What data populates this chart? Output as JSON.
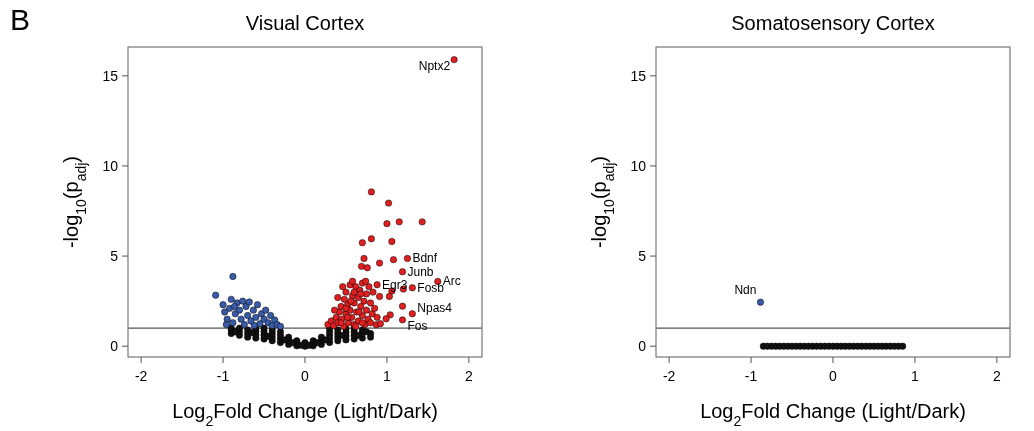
{
  "chart_data": [
    {
      "type": "scatter",
      "title": "Visual Cortex",
      "xlabel": "Log$_{2}$Fold Change (Light/Dark)",
      "ylabel": "-log$_{10}$(p$_{adj}$)",
      "xlim": [
        -2.16,
        2.16
      ],
      "ylim": [
        -0.6,
        16.6
      ],
      "xticks": [
        -2,
        -1,
        0,
        1,
        2
      ],
      "yticks": [
        0,
        5,
        10,
        15
      ],
      "grid": false,
      "marker": "circle",
      "ref_lines": [
        {
          "axis": "y",
          "value": 1,
          "color": "#555555"
        }
      ],
      "annotations": [
        "B",
        {
          "text": "Nptx2",
          "x": 1.82,
          "y": 15.9
        },
        {
          "text": "Bdnf",
          "x": 1.25,
          "y": 4.87
        },
        {
          "text": "Egr3",
          "x": 0.88,
          "y": 3.41
        },
        {
          "text": "Junb",
          "x": 1.19,
          "y": 4.13
        },
        {
          "text": "Arc",
          "x": 1.62,
          "y": 3.59
        },
        {
          "text": "Fosb",
          "x": 1.31,
          "y": 3.24
        },
        {
          "text": "Npas4",
          "x": 1.31,
          "y": 1.8
        },
        {
          "text": "Fos",
          "x": 1.19,
          "y": 1.46
        }
      ],
      "series": [
        {
          "color": "#111111",
          "x": [
            -0.9,
            -0.9,
            -0.9,
            -0.8,
            -0.8,
            -0.8,
            -0.7,
            -0.7,
            -0.7,
            -0.6,
            -0.6,
            -0.6,
            -0.6,
            -0.5,
            -0.5,
            -0.5,
            -0.5,
            -0.4,
            -0.4,
            -0.4,
            -0.4,
            -0.3,
            -0.3,
            -0.3,
            -0.3,
            -0.2,
            -0.2,
            -0.2,
            -0.1,
            -0.1,
            -0.1,
            0,
            0,
            0.1,
            0.1,
            0.1,
            0.2,
            0.2,
            0.2,
            0.3,
            0.3,
            0.3,
            0.3,
            0.3,
            0.4,
            0.4,
            0.4,
            0.4,
            0.5,
            0.5,
            0.5,
            0.5,
            0.6,
            0.6,
            0.6,
            0.6,
            0.7,
            0.7,
            0.7,
            0.8,
            0.8,
            -0.85,
            -0.65,
            -0.45,
            -0.25,
            -0.15,
            -0.05,
            0.05,
            0.15,
            0.25,
            0.45,
            0.65,
            0.75
          ],
          "values": [
            0.7,
            0.9,
            1.0,
            0.6,
            0.8,
            1.0,
            0.5,
            0.7,
            0.9,
            0.45,
            0.65,
            0.85,
            1.0,
            0.4,
            0.6,
            0.8,
            1.0,
            0.3,
            0.5,
            0.7,
            0.9,
            0.2,
            0.4,
            0.6,
            0.8,
            0.1,
            0.3,
            0.5,
            0.02,
            0.15,
            0.3,
            0,
            0.2,
            0.02,
            0.15,
            0.3,
            0.1,
            0.3,
            0.5,
            0.2,
            0.4,
            0.6,
            0.8,
            1.0,
            0.3,
            0.5,
            0.7,
            0.9,
            0.35,
            0.55,
            0.75,
            0.95,
            0.4,
            0.6,
            0.8,
            1.0,
            0.45,
            0.7,
            0.9,
            0.5,
            0.7,
            0.8,
            0.75,
            0.55,
            0.35,
            0.2,
            0.05,
            0.05,
            0.2,
            0.35,
            0.6,
            0.6,
            0.8
          ]
        },
        {
          "color": "#3a5ca8",
          "x": [
            -1.09,
            -0.88,
            -1.0,
            -0.98,
            -0.95,
            -0.92,
            -0.9,
            -0.88,
            -0.85,
            -0.83,
            -0.8,
            -0.78,
            -0.76,
            -0.74,
            -0.72,
            -0.7,
            -0.68,
            -0.66,
            -0.63,
            -0.6,
            -0.58,
            -0.55,
            -0.53,
            -0.5,
            -0.48,
            -0.45,
            -0.42,
            -0.4,
            -0.37,
            -0.34,
            -0.3,
            -0.96,
            -0.86,
            -0.62
          ],
          "values": [
            2.83,
            3.87,
            2.3,
            1.9,
            1.5,
            2.1,
            2.6,
            1.3,
            1.8,
            2.4,
            2.0,
            1.5,
            2.5,
            1.2,
            2.2,
            1.7,
            2.45,
            1.4,
            2.0,
            1.6,
            2.3,
            1.25,
            1.8,
            1.5,
            2.0,
            1.3,
            1.7,
            1.15,
            1.45,
            1.2,
            1.1,
            1.2,
            2.2,
            1.15
          ]
        },
        {
          "color": "#e02020",
          "x": [
            1.82,
            0.81,
            1.02,
            1.0,
            1.15,
            1.43,
            0.7,
            0.81,
            1.06,
            1.25,
            0.72,
            0.91,
            1.08,
            0.69,
            0.76,
            1.19,
            1.62,
            0.88,
            1.2,
            1.31,
            1.06,
            1.03,
            0.91,
            1.19,
            1.31,
            1.04,
            0.99,
            1.19,
            0.87,
            0.28,
            0.32,
            0.35,
            0.38,
            0.4,
            0.42,
            0.44,
            0.45,
            0.47,
            0.48,
            0.5,
            0.5,
            0.52,
            0.53,
            0.55,
            0.55,
            0.57,
            0.58,
            0.6,
            0.6,
            0.62,
            0.63,
            0.65,
            0.65,
            0.67,
            0.68,
            0.7,
            0.7,
            0.72,
            0.73,
            0.75,
            0.75,
            0.77,
            0.78,
            0.8,
            0.82,
            0.83,
            0.85,
            0.4,
            0.46,
            0.58,
            0.62,
            0.36,
            0.52,
            0.68,
            0.74,
            0.6,
            0.44,
            0.56,
            0.8,
            0.92,
            0.66,
            0.5,
            0.7,
            0.88
          ],
          "values": [
            15.9,
            8.56,
            7.94,
            6.8,
            6.9,
            6.9,
            5.74,
            5.96,
            5.81,
            4.87,
            4.87,
            4.61,
            4.8,
            4.43,
            4.35,
            4.13,
            3.59,
            3.41,
            3.17,
            3.24,
            3.06,
            2.76,
            2.76,
            2.22,
            1.8,
            1.74,
            1.52,
            1.46,
            1.19,
            1.2,
            1.4,
            1.15,
            1.6,
            1.3,
            1.9,
            2.2,
            1.5,
            1.1,
            2.6,
            1.8,
            3.0,
            2.3,
            1.3,
            3.4,
            2.0,
            1.6,
            2.8,
            1.2,
            2.4,
            3.3,
            1.9,
            2.7,
            1.4,
            3.1,
            2.2,
            1.7,
            3.5,
            2.5,
            1.2,
            2.9,
            2.0,
            1.5,
            3.3,
            2.4,
            1.8,
            3.0,
            2.1,
            2.7,
            3.3,
            3.6,
            1.1,
            2.0,
            1.6,
            2.9,
            3.6,
            3.0,
            1.3,
            2.5,
            1.3,
            1.25,
            1.9,
            2.1,
            1.3,
            1.6
          ]
        }
      ]
    },
    {
      "type": "scatter",
      "title": "Somatosensory Cortex",
      "xlabel": "Log$_{2}$Fold Change (Light/Dark)",
      "ylabel": "-log$_{10}$(p$_{adj}$)",
      "xlim": [
        -2.16,
        2.16
      ],
      "ylim": [
        -0.6,
        16.6
      ],
      "xticks": [
        -2,
        -1,
        0,
        1,
        2
      ],
      "yticks": [
        0,
        5,
        10,
        15
      ],
      "grid": false,
      "marker": "circle",
      "ref_lines": [
        {
          "axis": "y",
          "value": 1,
          "color": "#555555"
        }
      ],
      "annotations": [
        {
          "text": "Ndn",
          "x": -0.885,
          "y": 2.44
        }
      ],
      "series": [
        {
          "color": "#111111",
          "x": [
            -0.85,
            -0.8,
            -0.75,
            -0.7,
            -0.65,
            -0.6,
            -0.55,
            -0.5,
            -0.45,
            -0.4,
            -0.35,
            -0.3,
            -0.25,
            -0.2,
            -0.15,
            -0.1,
            -0.05,
            0,
            0.05,
            0.1,
            0.15,
            0.2,
            0.25,
            0.3,
            0.35,
            0.4,
            0.45,
            0.5,
            0.55,
            0.6,
            0.65,
            0.7,
            0.75,
            0.8,
            0.85
          ],
          "values": [
            0,
            0,
            0,
            0,
            0,
            0,
            0,
            0,
            0,
            0,
            0,
            0,
            0,
            0,
            0,
            0,
            0,
            0,
            0,
            0,
            0,
            0,
            0,
            0,
            0,
            0,
            0,
            0,
            0,
            0,
            0,
            0,
            0,
            0,
            0
          ]
        },
        {
          "color": "#3a5ca8",
          "x": [
            -0.885
          ],
          "values": [
            2.44
          ]
        }
      ]
    }
  ]
}
